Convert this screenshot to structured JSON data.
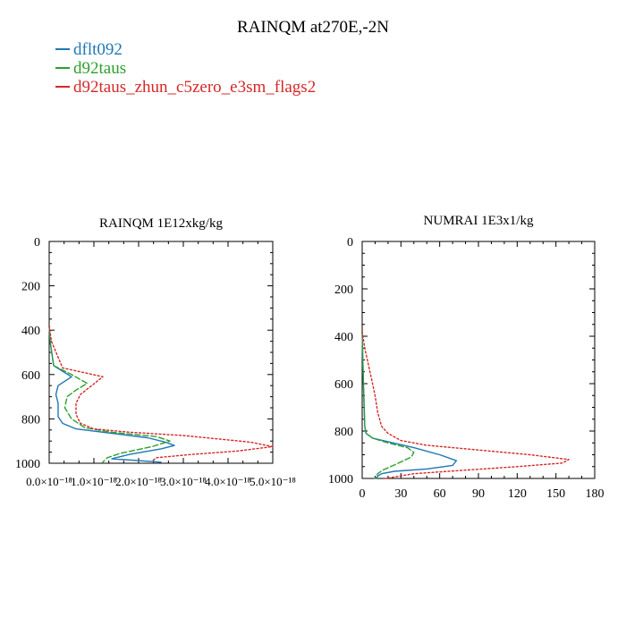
{
  "title": "RAINQM at270E,-2N",
  "legend": [
    {
      "name": "dflt092",
      "color": "#1f77b4"
    },
    {
      "name": "d92taus",
      "color": "#2ca02c"
    },
    {
      "name": "d92taus_zhun_c5zero_e3sm_flags2",
      "color": "#d62728"
    }
  ],
  "chart_data": [
    {
      "type": "line",
      "title": "RAINQM  1E12xkg/kg",
      "xlabel": "",
      "ylabel": "",
      "xlim": [
        0,
        5e-18
      ],
      "ylim": [
        1000,
        0
      ],
      "x_tick_labels": [
        "0.0×10⁻¹⁸",
        "1.0×10⁻¹⁸",
        "2.0×10⁻¹⁸",
        "3.0×10⁻¹⁸",
        "4.0×10⁻¹⁸",
        "5.0×10⁻¹⁸"
      ],
      "x_tick_values": [
        0,
        1e-18,
        2e-18,
        3e-18,
        4e-18,
        5e-18
      ],
      "y_ticks": [
        0,
        200,
        400,
        600,
        800,
        1000
      ],
      "series": [
        {
          "name": "dflt092",
          "color": "#1f77b4",
          "dash": "solid",
          "x": [
            0,
            2e-20,
            1e-19,
            3e-19,
            5e-19,
            2e-19,
            1.5e-19,
            2e-19,
            2e-19,
            3e-19,
            6e-19,
            1.4e-18,
            2.2e-18,
            2.6e-18,
            2.8e-18,
            2.5e-18,
            1.8e-18,
            1.4e-18,
            2.5e-18
          ],
          "y": [
            380,
            450,
            560,
            585,
            610,
            650,
            690,
            730,
            790,
            820,
            845,
            865,
            885,
            905,
            920,
            935,
            960,
            980,
            995
          ]
        },
        {
          "name": "d92taus",
          "color": "#2ca02c",
          "dash": "dashed",
          "x": [
            0,
            2e-20,
            1e-19,
            5e-19,
            8.5e-19,
            6e-19,
            4e-19,
            3.5e-19,
            5e-19,
            8e-19,
            1.4e-18,
            2.4e-18,
            2.7e-18,
            2.3e-18,
            1.6e-18,
            1.3e-18,
            1.2e-18
          ],
          "y": [
            380,
            450,
            560,
            600,
            640,
            670,
            700,
            750,
            800,
            840,
            860,
            880,
            900,
            925,
            955,
            975,
            995
          ]
        },
        {
          "name": "d92taus_zhun_c5zero_e3sm_flags2",
          "color": "#d62728",
          "dash": "dotted",
          "x": [
            0,
            5e-20,
            3e-19,
            1.2e-18,
            9.5e-19,
            7e-19,
            6e-19,
            6e-19,
            7e-19,
            1e-18,
            1.8e-18,
            3e-18,
            4.5e-18,
            5e-18,
            4.2e-18,
            3.2e-18,
            2.4e-18,
            2.3e-18
          ],
          "y": [
            380,
            450,
            570,
            610,
            650,
            690,
            730,
            780,
            820,
            845,
            860,
            875,
            905,
            925,
            945,
            960,
            975,
            990
          ]
        }
      ]
    },
    {
      "type": "line",
      "title": "NUMRAI  1E3x1/kg",
      "xlabel": "",
      "ylabel": "",
      "xlim": [
        0,
        180
      ],
      "ylim": [
        1000,
        0
      ],
      "x_tick_labels": [
        "0",
        "30",
        "60",
        "90",
        "120",
        "150",
        "180"
      ],
      "x_tick_values": [
        0,
        30,
        60,
        90,
        120,
        150,
        180
      ],
      "y_ticks": [
        0,
        200,
        400,
        600,
        800,
        1000
      ],
      "series": [
        {
          "name": "dflt092",
          "color": "#1f77b4",
          "dash": "solid",
          "x": [
            0,
            0.5,
            1,
            1.5,
            2,
            3,
            8,
            20,
            40,
            60,
            73,
            70,
            50,
            25,
            15,
            12,
            11
          ],
          "y": [
            380,
            500,
            600,
            700,
            780,
            810,
            830,
            845,
            870,
            900,
            925,
            945,
            960,
            970,
            980,
            990,
            1000
          ]
        },
        {
          "name": "d92taus",
          "color": "#2ca02c",
          "dash": "dashed",
          "x": [
            0,
            0.5,
            1,
            1.5,
            2,
            3,
            8,
            20,
            35,
            40,
            38,
            30,
            22,
            16,
            12,
            10
          ],
          "y": [
            380,
            500,
            600,
            700,
            780,
            810,
            830,
            850,
            870,
            890,
            910,
            930,
            950,
            965,
            980,
            1000
          ]
        },
        {
          "name": "d92taus_zhun_c5zero_e3sm_flags2",
          "color": "#d62728",
          "dash": "dotted",
          "x": [
            0,
            2,
            6,
            8,
            10,
            12,
            15,
            20,
            30,
            50,
            90,
            130,
            160,
            155,
            120,
            80,
            40,
            18
          ],
          "y": [
            380,
            450,
            550,
            600,
            650,
            720,
            780,
            810,
            840,
            860,
            880,
            900,
            920,
            935,
            950,
            965,
            980,
            1000
          ]
        }
      ]
    }
  ]
}
